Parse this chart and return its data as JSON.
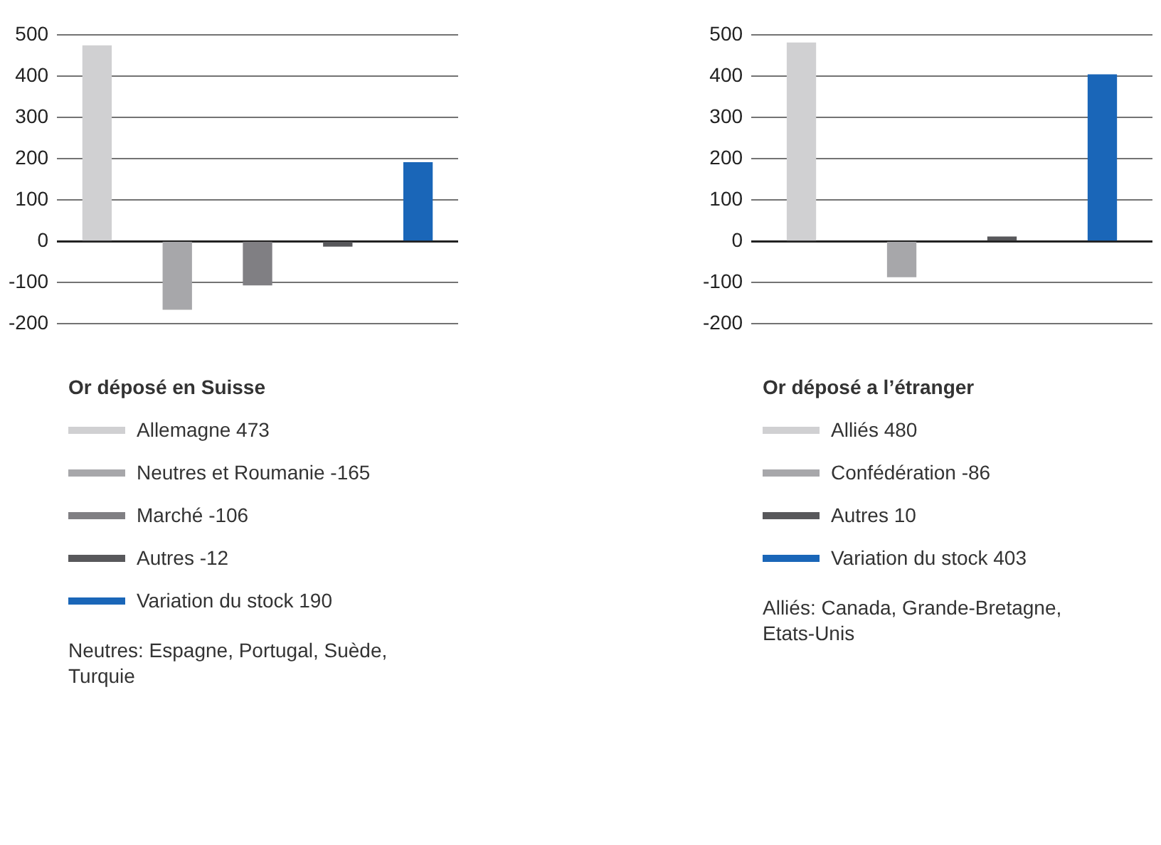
{
  "chart_data": [
    {
      "type": "bar",
      "title": "Or déposé en Suisse",
      "categories": [
        null,
        null,
        null,
        null,
        null
      ],
      "series": [
        {
          "name": "Allemagne 473",
          "color": "#d0d0d2",
          "values": [
            473,
            null,
            null,
            null,
            null
          ]
        },
        {
          "name": "Neutres et Roumanie -165",
          "color": "#a7a7aa",
          "values": [
            null,
            -165,
            null,
            null,
            null
          ]
        },
        {
          "name": "Marché -106",
          "color": "#807f83",
          "values": [
            null,
            null,
            -106,
            null,
            null
          ]
        },
        {
          "name": "Autres -12",
          "color": "#58585b",
          "values": [
            null,
            null,
            null,
            -12,
            null
          ]
        },
        {
          "name": "Variation du stock 190",
          "color": "#1a66b8",
          "values": [
            null,
            null,
            null,
            null,
            190
          ]
        }
      ],
      "ylim": [
        -200,
        500
      ],
      "yticks": [
        -200,
        -100,
        0,
        100,
        200,
        300,
        400,
        500
      ],
      "grid": "y",
      "legend": "bottom",
      "tick_labels": "y",
      "annotations": [
        "Neutres: Espagne, Portugal, Suède, Turquie"
      ]
    },
    {
      "type": "bar",
      "title": "Or déposé a l’étranger",
      "categories": [
        null,
        null,
        null,
        null
      ],
      "series": [
        {
          "name": "Alliés 480",
          "color": "#d0d0d2",
          "values": [
            480,
            null,
            null,
            null
          ]
        },
        {
          "name": "Confédération -86",
          "color": "#a7a7aa",
          "values": [
            null,
            -86,
            null,
            null
          ]
        },
        {
          "name": "Autres 10",
          "color": "#58585b",
          "values": [
            null,
            null,
            10,
            null
          ]
        },
        {
          "name": "Variation du stock 403",
          "color": "#1a66b8",
          "values": [
            null,
            null,
            null,
            403
          ]
        }
      ],
      "ylim": [
        -200,
        500
      ],
      "yticks": [
        -200,
        -100,
        0,
        100,
        200,
        300,
        400,
        500
      ],
      "grid": "y",
      "legend": "bottom",
      "tick_labels": "y",
      "annotations": [
        "Alliés: Canada, Grande-Bretagne, Etats-Unis"
      ]
    }
  ]
}
